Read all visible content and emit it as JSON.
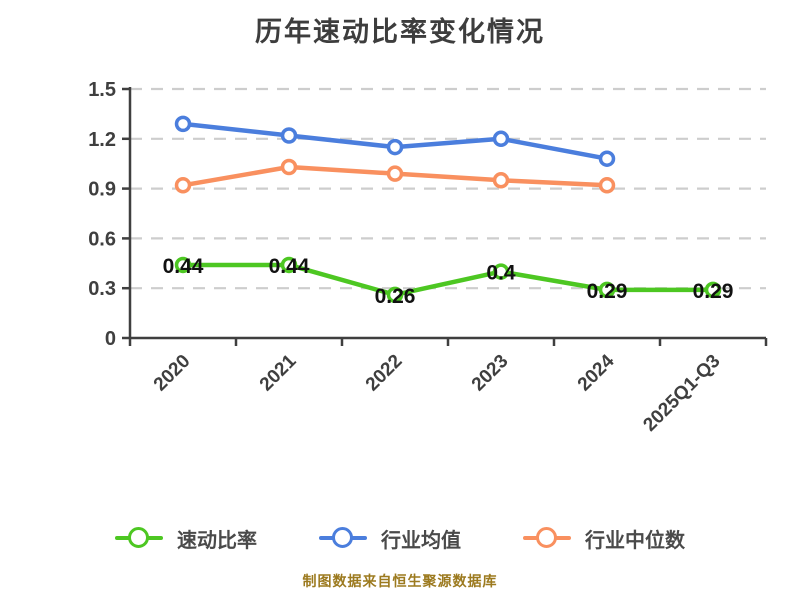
{
  "title": "历年速动比率变化情况",
  "footer": "制图数据来自恒生聚源数据库",
  "colors": {
    "axis": "#3f3f3f",
    "gridline": "#cdcdcd",
    "tick_label": "#3f3f3f",
    "data_label": "#111111",
    "title": "#3d3d3d",
    "legend_text": "#4a4a4a",
    "footer_text": "#9c7a1f",
    "marker_fill": "#ffffff"
  },
  "chart_data": {
    "type": "line",
    "title": "历年速动比率变化情况",
    "categories": [
      "2020",
      "2021",
      "2022",
      "2023",
      "2024",
      "2025Q1-Q3"
    ],
    "series": [
      {
        "name": "速动比率",
        "color": "#4dc722",
        "values": [
          0.44,
          0.44,
          0.26,
          0.4,
          0.29,
          0.29
        ],
        "labels": [
          "0.44",
          "0.44",
          "0.26",
          "0.4",
          "0.29",
          "0.29"
        ]
      },
      {
        "name": "行业均值",
        "color": "#4b7edd",
        "values": [
          1.29,
          1.22,
          1.15,
          1.2,
          1.08,
          null
        ],
        "labels": null
      },
      {
        "name": "行业中位数",
        "color": "#f9905f",
        "values": [
          0.92,
          1.03,
          0.99,
          0.95,
          0.92,
          null
        ],
        "labels": null
      }
    ],
    "xlabel": "",
    "ylabel": "",
    "ylim": [
      0,
      1.5
    ],
    "yticks": [
      0,
      0.3,
      0.6,
      0.9,
      1.2,
      1.5
    ],
    "grid": true,
    "grid_style": "dashed",
    "x_tick_rotation": -45,
    "legend_position": "bottom"
  }
}
